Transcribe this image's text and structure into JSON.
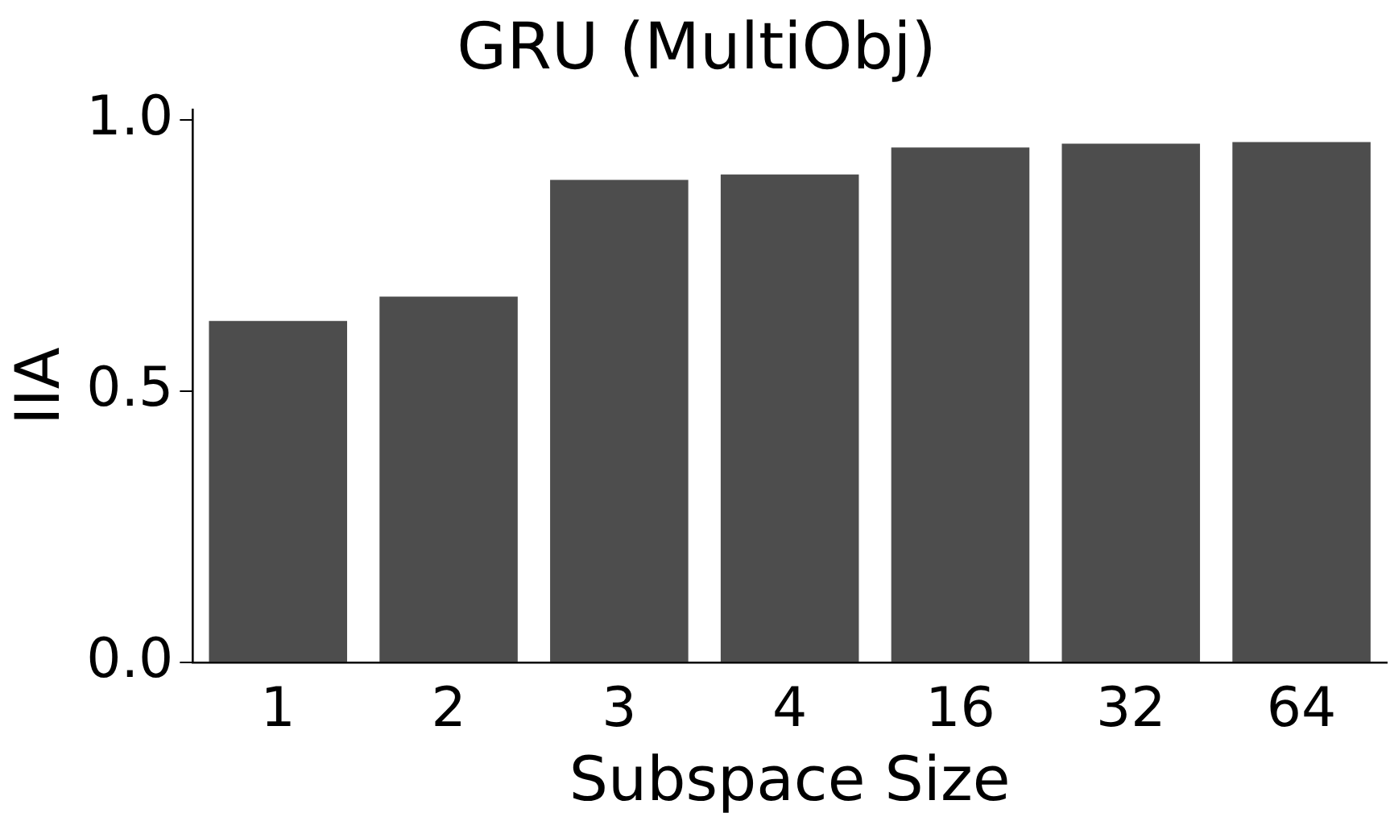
{
  "chart_data": {
    "type": "bar",
    "title": "GRU (MultiObj)",
    "xlabel": "Subspace Size",
    "ylabel": "IIA",
    "categories": [
      "1",
      "2",
      "3",
      "4",
      "16",
      "32",
      "64"
    ],
    "values": [
      0.63,
      0.675,
      0.89,
      0.9,
      0.95,
      0.957,
      0.96
    ],
    "color": "#4d4d4d",
    "ylim": [
      0,
      1.02
    ],
    "yticks": [
      {
        "value": 0,
        "label": "0.0"
      },
      {
        "value": 0.5,
        "label": "0.5"
      },
      {
        "value": 1,
        "label": "1.0"
      }
    ],
    "grid": false,
    "legend": false
  }
}
